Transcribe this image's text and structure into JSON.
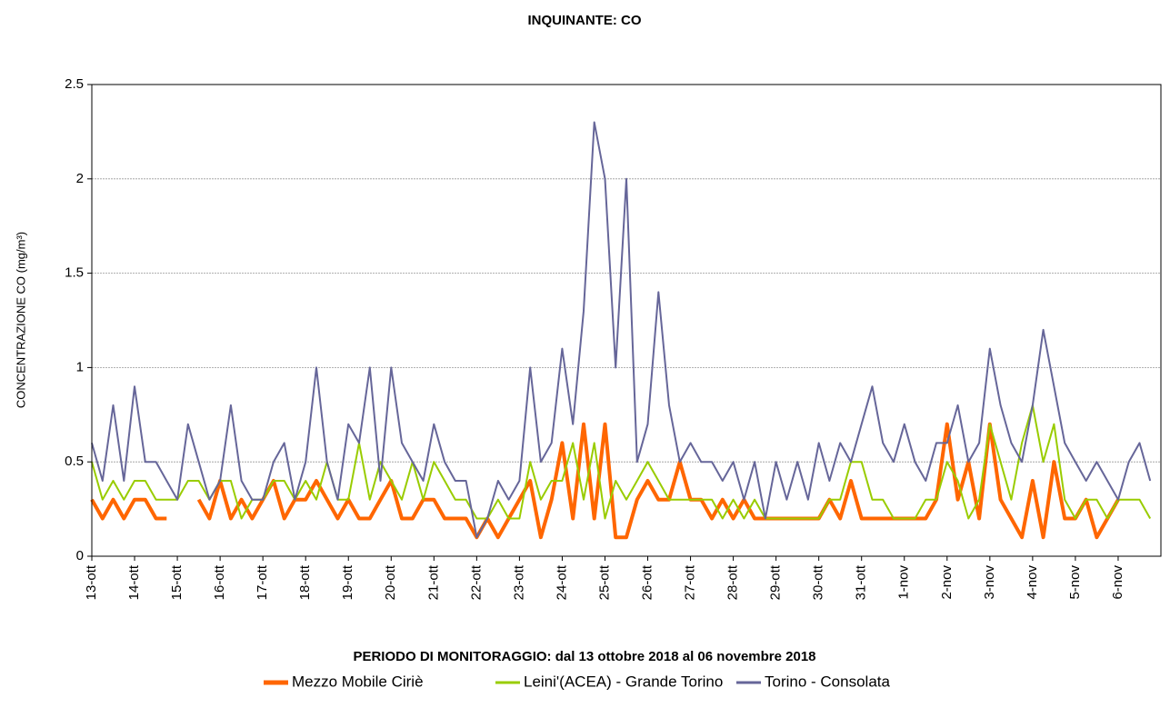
{
  "chart_data": {
    "type": "line",
    "title": "INQUINANTE: CO",
    "x_label": "PERIODO DI MONITORAGGIO: dal 13 ottobre 2018 al 06 novembre 2018",
    "y_label": "CONCENTRAZIONE CO (mg/m³)",
    "xlim": [
      0,
      25
    ],
    "ylim": [
      0,
      2.5
    ],
    "yticks": [
      0,
      0.5,
      1,
      1.5,
      2,
      2.5
    ],
    "xticks": [
      {
        "value": 0,
        "label": "13-ott"
      },
      {
        "value": 1,
        "label": "14-ott"
      },
      {
        "value": 2,
        "label": "15-ott"
      },
      {
        "value": 3,
        "label": "16-ott"
      },
      {
        "value": 4,
        "label": "17-ott"
      },
      {
        "value": 5,
        "label": "18-ott"
      },
      {
        "value": 6,
        "label": "19-ott"
      },
      {
        "value": 7,
        "label": "20-ott"
      },
      {
        "value": 8,
        "label": "21-ott"
      },
      {
        "value": 9,
        "label": "22-ott"
      },
      {
        "value": 10,
        "label": "23-ott"
      },
      {
        "value": 11,
        "label": "24-ott"
      },
      {
        "value": 12,
        "label": "25-ott"
      },
      {
        "value": 13,
        "label": "26-ott"
      },
      {
        "value": 14,
        "label": "27-ott"
      },
      {
        "value": 15,
        "label": "28-ott"
      },
      {
        "value": 16,
        "label": "29-ott"
      },
      {
        "value": 17,
        "label": "30-ott"
      },
      {
        "value": 18,
        "label": "31-ott"
      },
      {
        "value": 19,
        "label": "1-nov"
      },
      {
        "value": 20,
        "label": "2-nov"
      },
      {
        "value": 21,
        "label": "3-nov"
      },
      {
        "value": 22,
        "label": "4-nov"
      },
      {
        "value": 23,
        "label": "5-nov"
      },
      {
        "value": 24,
        "label": "6-nov"
      }
    ],
    "grid": true,
    "x": [
      0,
      0.25,
      0.5,
      0.75,
      1,
      1.25,
      1.5,
      1.75,
      2,
      2.25,
      2.5,
      2.75,
      3,
      3.25,
      3.5,
      3.75,
      4,
      4.25,
      4.5,
      4.75,
      5,
      5.25,
      5.5,
      5.75,
      6,
      6.25,
      6.5,
      6.75,
      7,
      7.25,
      7.5,
      7.75,
      8,
      8.25,
      8.5,
      8.75,
      9,
      9.25,
      9.5,
      9.75,
      10,
      10.25,
      10.5,
      10.75,
      11,
      11.25,
      11.5,
      11.75,
      12,
      12.25,
      12.5,
      12.75,
      13,
      13.25,
      13.5,
      13.75,
      14,
      14.25,
      14.5,
      14.75,
      15,
      15.25,
      15.5,
      15.75,
      16,
      16.25,
      16.5,
      16.75,
      17,
      17.25,
      17.5,
      17.75,
      18,
      18.25,
      18.5,
      18.75,
      19,
      19.25,
      19.5,
      19.75,
      20,
      20.25,
      20.5,
      20.75,
      21,
      21.25,
      21.5,
      21.75,
      22,
      22.25,
      22.5,
      22.75,
      23,
      23.25,
      23.5,
      23.75,
      24,
      24.25,
      24.5,
      24.75
    ],
    "series": [
      {
        "name": "Mezzo Mobile Ciriè",
        "color": "#ff6600",
        "width": 4,
        "values": [
          0.3,
          0.2,
          0.3,
          0.2,
          0.3,
          0.3,
          0.2,
          0.2,
          null,
          null,
          0.3,
          0.2,
          0.4,
          0.2,
          0.3,
          0.2,
          0.3,
          0.4,
          0.2,
          0.3,
          0.3,
          0.4,
          0.3,
          0.2,
          0.3,
          0.2,
          0.2,
          0.3,
          0.4,
          0.2,
          0.2,
          0.3,
          0.3,
          0.2,
          0.2,
          0.2,
          0.1,
          0.2,
          0.1,
          0.2,
          0.3,
          0.4,
          0.1,
          0.3,
          0.6,
          0.2,
          0.7,
          0.2,
          0.7,
          0.1,
          0.1,
          0.3,
          0.4,
          0.3,
          0.3,
          0.5,
          0.3,
          0.3,
          0.2,
          0.3,
          0.2,
          0.3,
          0.2,
          0.2,
          0.2,
          0.2,
          0.2,
          0.2,
          0.2,
          0.3,
          0.2,
          0.4,
          0.2,
          0.2,
          0.2,
          0.2,
          0.2,
          0.2,
          0.2,
          0.3,
          0.7,
          0.3,
          0.5,
          0.2,
          0.7,
          0.3,
          0.2,
          0.1,
          0.4,
          0.1,
          0.5,
          0.2,
          0.2,
          0.3,
          0.1,
          0.2,
          0.3,
          null,
          null,
          null
        ]
      },
      {
        "name": "Leini'(ACEA) - Grande Torino",
        "color": "#99cc00",
        "width": 2,
        "values": [
          0.5,
          0.3,
          0.4,
          0.3,
          0.4,
          0.4,
          0.3,
          0.3,
          0.3,
          0.4,
          0.4,
          0.3,
          0.4,
          0.4,
          0.2,
          0.3,
          0.3,
          0.4,
          0.4,
          0.3,
          0.4,
          0.3,
          0.5,
          0.3,
          0.3,
          0.6,
          0.3,
          0.5,
          0.4,
          0.3,
          0.5,
          0.3,
          0.5,
          0.4,
          0.3,
          0.3,
          0.2,
          0.2,
          0.3,
          0.2,
          0.2,
          0.5,
          0.3,
          0.4,
          0.4,
          0.6,
          0.3,
          0.6,
          0.2,
          0.4,
          0.3,
          0.4,
          0.5,
          0.4,
          0.3,
          0.3,
          0.3,
          0.3,
          0.3,
          0.2,
          0.3,
          0.2,
          0.3,
          0.2,
          0.2,
          0.2,
          0.2,
          0.2,
          0.2,
          0.3,
          0.3,
          0.5,
          0.5,
          0.3,
          0.3,
          0.2,
          0.2,
          0.2,
          0.3,
          0.3,
          0.5,
          0.4,
          0.2,
          0.3,
          0.7,
          0.5,
          0.3,
          0.6,
          0.8,
          0.5,
          0.7,
          0.3,
          0.2,
          0.3,
          0.3,
          0.2,
          0.3,
          0.3,
          0.3,
          0.2
        ]
      },
      {
        "name": "Torino - Consolata",
        "color": "#666699",
        "width": 2,
        "values": [
          0.6,
          0.4,
          0.8,
          0.4,
          0.9,
          0.5,
          0.5,
          0.4,
          0.3,
          0.7,
          0.5,
          0.3,
          0.4,
          0.8,
          0.4,
          0.3,
          0.3,
          0.5,
          0.6,
          0.3,
          0.5,
          1.0,
          0.5,
          0.3,
          0.7,
          0.6,
          1.0,
          0.4,
          1.0,
          0.6,
          0.5,
          0.4,
          0.7,
          0.5,
          0.4,
          0.4,
          0.1,
          0.2,
          0.4,
          0.3,
          0.4,
          1.0,
          0.5,
          0.6,
          1.1,
          0.7,
          1.3,
          2.3,
          2.0,
          1.0,
          2.0,
          0.5,
          0.7,
          1.4,
          0.8,
          0.5,
          0.6,
          0.5,
          0.5,
          0.4,
          0.5,
          0.3,
          0.5,
          0.2,
          0.5,
          0.3,
          0.5,
          0.3,
          0.6,
          0.4,
          0.6,
          0.5,
          0.7,
          0.9,
          0.6,
          0.5,
          0.7,
          0.5,
          0.4,
          0.6,
          0.6,
          0.8,
          0.5,
          0.6,
          1.1,
          0.8,
          0.6,
          0.5,
          0.8,
          1.2,
          0.9,
          0.6,
          0.5,
          0.4,
          0.5,
          0.4,
          0.3,
          0.5,
          0.6,
          0.4
        ]
      }
    ]
  }
}
